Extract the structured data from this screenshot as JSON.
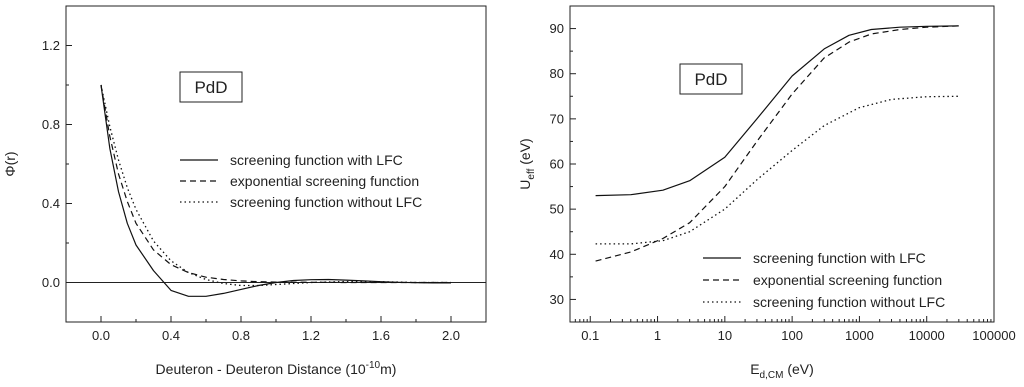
{
  "chart_data": [
    {
      "type": "line",
      "xlabel": "Deuteron - Deuteron Distance (10",
      "xlabel_sup": "-10",
      "xlabel_tail": "m)",
      "ylabel": "Φ(r)",
      "xlim": [
        -0.2,
        2.2
      ],
      "ylim": [
        -0.2,
        1.4
      ],
      "xticks": [
        "0.0",
        "0.4",
        "0.8",
        "1.2",
        "1.6",
        "2.0"
      ],
      "yticks": [
        "0.0",
        "0.4",
        "0.8",
        "1.2"
      ],
      "annotation": "PdD",
      "zero_line": true,
      "legend": [
        "screening function with LFC",
        "exponential screening function",
        "screening function without LFC"
      ],
      "series": [
        {
          "name": "screening function with LFC",
          "style": "solid",
          "x": [
            0.0,
            0.05,
            0.1,
            0.15,
            0.2,
            0.3,
            0.4,
            0.5,
            0.6,
            0.7,
            0.8,
            0.9,
            1.0,
            1.1,
            1.2,
            1.3,
            1.4,
            1.5,
            1.6,
            1.7,
            1.8,
            1.9,
            2.0
          ],
          "y": [
            1.0,
            0.68,
            0.46,
            0.3,
            0.19,
            0.06,
            -0.04,
            -0.07,
            -0.07,
            -0.055,
            -0.035,
            -0.015,
            0.0,
            0.01,
            0.014,
            0.015,
            0.012,
            0.008,
            0.004,
            0.001,
            -0.001,
            -0.002,
            -0.002
          ]
        },
        {
          "name": "exponential screening function",
          "style": "dashed",
          "x": [
            0.0,
            0.05,
            0.1,
            0.15,
            0.2,
            0.3,
            0.4,
            0.5,
            0.6,
            0.7,
            0.8,
            0.9,
            1.0,
            1.2,
            1.4,
            1.6,
            1.8,
            2.0
          ],
          "y": [
            1.0,
            0.74,
            0.55,
            0.41,
            0.3,
            0.165,
            0.09,
            0.05,
            0.027,
            0.015,
            0.008,
            0.004,
            0.002,
            0.001,
            0.0,
            0.0,
            0.0,
            0.0
          ]
        },
        {
          "name": "screening function without LFC",
          "style": "dotted",
          "x": [
            0.0,
            0.05,
            0.1,
            0.15,
            0.2,
            0.3,
            0.4,
            0.5,
            0.6,
            0.7,
            0.8,
            0.9,
            1.0,
            1.2,
            1.4,
            1.6,
            1.8,
            2.0
          ],
          "y": [
            1.0,
            0.79,
            0.62,
            0.48,
            0.37,
            0.21,
            0.11,
            0.05,
            0.015,
            -0.005,
            -0.015,
            -0.015,
            -0.01,
            0.0,
            0.005,
            0.004,
            0.0,
            0.0
          ]
        }
      ]
    },
    {
      "type": "line",
      "xscale": "log",
      "xlabel": "E",
      "xlabel_sub": "d,CM",
      "xlabel_tail": " (eV)",
      "ylabel": "U",
      "ylabel_sub": "eff",
      "ylabel_tail": " (eV)",
      "xlim": [
        0.05,
        100000
      ],
      "ylim": [
        25,
        95
      ],
      "xticks": [
        "0.1",
        "1",
        "10",
        "100",
        "1000",
        "10000",
        "100000"
      ],
      "yticks": [
        "30",
        "40",
        "50",
        "60",
        "70",
        "80",
        "90"
      ],
      "annotation": "PdD",
      "legend": [
        "screening function with LFC",
        "exponential screening function",
        "screening function without LFC"
      ],
      "series": [
        {
          "name": "screening function with LFC",
          "style": "solid",
          "x": [
            0.12,
            0.4,
            1.2,
            3,
            10,
            30,
            100,
            300,
            700,
            1500,
            4000,
            10000,
            30000
          ],
          "y": [
            53,
            53.2,
            54.2,
            56.3,
            61.5,
            70,
            79.5,
            85.5,
            88.5,
            89.8,
            90.3,
            90.5,
            90.6
          ]
        },
        {
          "name": "exponential screening function",
          "style": "dashed",
          "x": [
            0.12,
            0.4,
            1.2,
            3,
            10,
            30,
            100,
            300,
            700,
            1500,
            4000,
            10000,
            30000
          ],
          "y": [
            38.5,
            40.5,
            43.5,
            47,
            55,
            65,
            75.5,
            83.5,
            87,
            88.8,
            89.8,
            90.3,
            90.6
          ]
        },
        {
          "name": "screening function without LFC",
          "style": "dotted",
          "x": [
            0.12,
            0.4,
            1.2,
            3,
            10,
            30,
            100,
            300,
            1000,
            3000,
            10000,
            30000
          ],
          "y": [
            42.3,
            42.3,
            43,
            45,
            50,
            56.5,
            63,
            68.5,
            72.5,
            74.3,
            74.9,
            75.0
          ]
        }
      ]
    }
  ]
}
